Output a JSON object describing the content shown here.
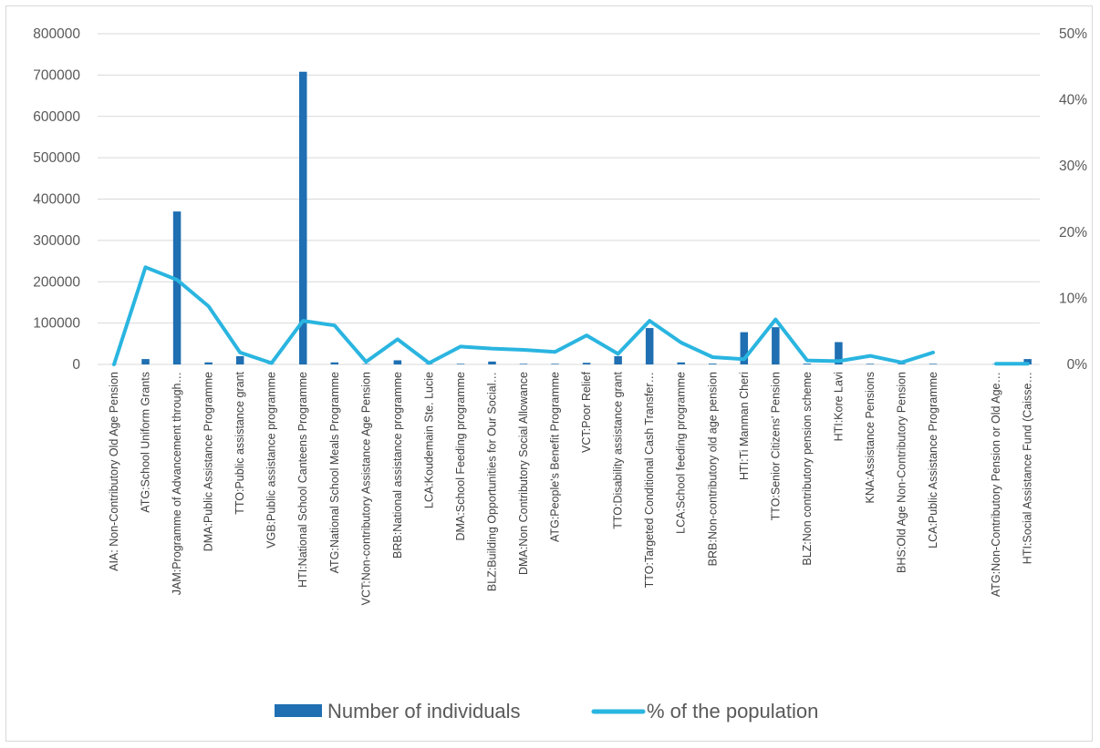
{
  "chart_data": {
    "type": "bar",
    "categories": [
      "AIA: Non-Contributory Old Age Pension",
      "ATG:School Uniform Grants",
      "JAM:Programme of Advancement through…",
      "DMA:Public Assistance Programme",
      "TTO:Public assistance grant",
      "VGB:Public assistance programme",
      "HTI:National School Canteens Programme",
      "ATG:National School Meals Programme",
      "VCT:Non-contributory Assistance Age Pension",
      "BRB:National assistance programme",
      "LCA:Koudemain Ste. Lucie",
      "DMA:School Feeding programme",
      "BLZ:Building Opportunities for Our Social…",
      "DMA:Non Contributory Social Allowance",
      "ATG:People's Benefit Programme",
      "VCT:Poor Relief",
      "TTO:Disability assistance grant",
      "TTO:Targeted Conditional Cash Transfer…",
      "LCA:School feeding programme",
      "BRB:Non-contributory old age pension",
      "HTI:Ti Manman Cheri",
      "TTO:Senior Citizens' Pension",
      "BLZ:Non contributory pension scheme",
      "HTI:Kore Lavi",
      "KNA:Assistance Pensions",
      "BHS:Old Age Non-Contributory Pension",
      "LCA:Public Assistance Programme",
      "",
      "ATG:Non-Contributory Pension or Old Age…",
      "HTI:Social Assistance Fund (Caisse…"
    ],
    "series": [
      {
        "name": "Number of individuals",
        "axis": "left",
        "color": "#1f6fb2",
        "values": [
          500,
          13000,
          370000,
          5000,
          20000,
          500,
          708000,
          5000,
          1000,
          10000,
          1000,
          1500,
          7000,
          1500,
          1500,
          4000,
          20000,
          88000,
          5000,
          2000,
          78000,
          90000,
          2000,
          54000,
          1500,
          1500,
          1500,
          null,
          1000,
          13000
        ]
      },
      {
        "name": "% of the population",
        "axis": "right",
        "color": "#2ab5e0",
        "values": [
          0,
          14.7,
          12.8,
          8.8,
          1.8,
          0.2,
          6.6,
          5.9,
          0.4,
          3.8,
          0.2,
          2.7,
          2.4,
          2.2,
          1.9,
          4.4,
          1.6,
          6.6,
          3.3,
          1.1,
          0.8,
          6.8,
          0.6,
          0.5,
          1.3,
          0.3,
          1.8,
          null,
          0.1,
          0.1
        ]
      }
    ],
    "y_left": {
      "min": 0,
      "max": 800000,
      "ticks": [
        "0",
        "100000",
        "200000",
        "300000",
        "400000",
        "500000",
        "600000",
        "700000",
        "800000"
      ]
    },
    "y_right": {
      "min": 0,
      "max": 50,
      "ticks": [
        "0%",
        "10%",
        "20%",
        "30%",
        "40%",
        "50%"
      ]
    },
    "grid": true,
    "legend_position": "bottom",
    "legend": [
      {
        "label": "Number of individuals",
        "kind": "bar"
      },
      {
        "label": "% of the population",
        "kind": "line"
      }
    ],
    "title": "",
    "xlabel": "",
    "ylabel": ""
  },
  "colors": {
    "bar": "#1f6fb2",
    "line": "#2ab5e0",
    "grid": "#d9d9d9",
    "text": "#595959"
  }
}
